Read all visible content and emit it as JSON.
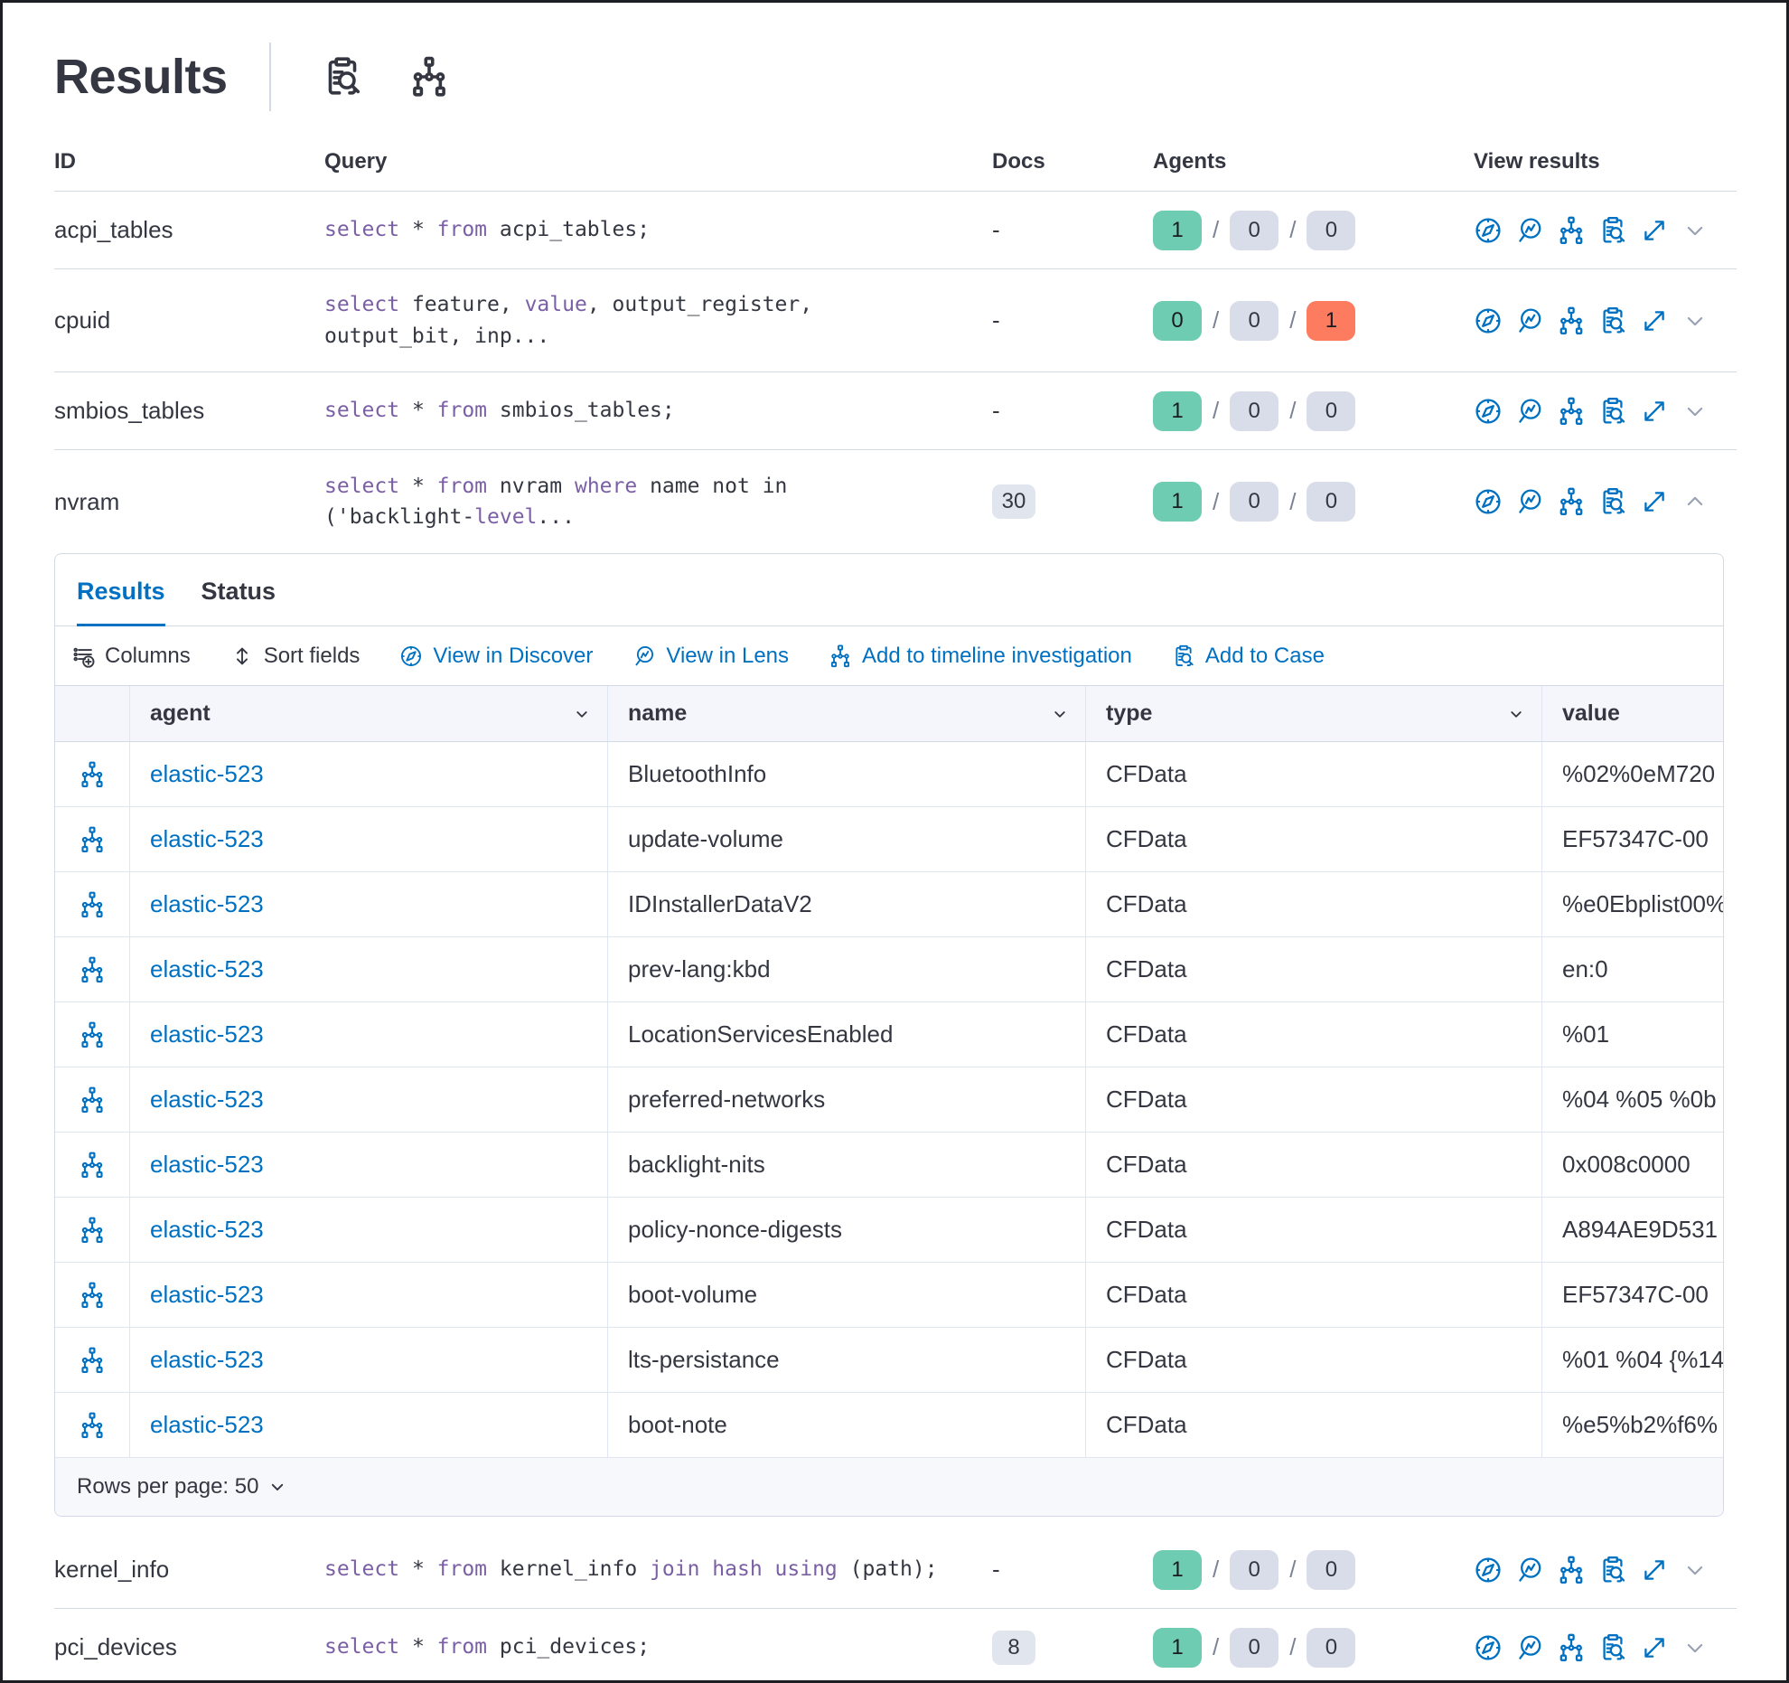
{
  "header": {
    "title": "Results"
  },
  "table": {
    "columns": {
      "id": "ID",
      "query": "Query",
      "docs": "Docs",
      "agents": "Agents",
      "view": "View results"
    }
  },
  "rows": [
    {
      "id": "acpi_tables",
      "query": [
        {
          "t": "select",
          "k": 1
        },
        {
          "t": " * "
        },
        {
          "t": "from",
          "k": 1
        },
        {
          "t": " acpi_tables;"
        }
      ],
      "docs": "-",
      "docs_badge": false,
      "agents": [
        "1",
        "0",
        "0"
      ],
      "danger": false,
      "expanded": false
    },
    {
      "id": "cpuid",
      "query": [
        {
          "t": "select",
          "k": 1
        },
        {
          "t": " feature, "
        },
        {
          "t": "value",
          "k": 1
        },
        {
          "t": ", output_register,\noutput_bit, inp..."
        }
      ],
      "docs": "-",
      "docs_badge": false,
      "agents": [
        "0",
        "0",
        "1"
      ],
      "danger": true,
      "expanded": false
    },
    {
      "id": "smbios_tables",
      "query": [
        {
          "t": "select",
          "k": 1
        },
        {
          "t": " * "
        },
        {
          "t": "from",
          "k": 1
        },
        {
          "t": " smbios_tables;"
        }
      ],
      "docs": "-",
      "docs_badge": false,
      "agents": [
        "1",
        "0",
        "0"
      ],
      "danger": false,
      "expanded": false
    },
    {
      "id": "nvram",
      "query": [
        {
          "t": "select",
          "k": 1
        },
        {
          "t": " * "
        },
        {
          "t": "from",
          "k": 1
        },
        {
          "t": " nvram "
        },
        {
          "t": "where",
          "k": 1
        },
        {
          "t": " name not in\n('backlight-"
        },
        {
          "t": "level",
          "k": 1
        },
        {
          "t": "..."
        }
      ],
      "docs": "30",
      "docs_badge": true,
      "agents": [
        "1",
        "0",
        "0"
      ],
      "danger": false,
      "expanded": true
    },
    {
      "id": "kernel_info",
      "query": [
        {
          "t": "select",
          "k": 1
        },
        {
          "t": " * "
        },
        {
          "t": "from",
          "k": 1
        },
        {
          "t": " kernel_info "
        },
        {
          "t": "join",
          "k": 1
        },
        {
          "t": " "
        },
        {
          "t": "hash",
          "k": 1
        },
        {
          "t": " "
        },
        {
          "t": "using",
          "k": 1
        },
        {
          "t": " (path);"
        }
      ],
      "docs": "-",
      "docs_badge": false,
      "agents": [
        "1",
        "0",
        "0"
      ],
      "danger": false,
      "expanded": false
    },
    {
      "id": "pci_devices",
      "query": [
        {
          "t": "select",
          "k": 1
        },
        {
          "t": " * "
        },
        {
          "t": "from",
          "k": 1
        },
        {
          "t": " pci_devices;"
        }
      ],
      "docs": "8",
      "docs_badge": true,
      "agents": [
        "1",
        "0",
        "0"
      ],
      "danger": false,
      "expanded": false
    }
  ],
  "panel": {
    "tabs": [
      {
        "label": "Results",
        "active": true
      },
      {
        "label": "Status",
        "active": false
      }
    ],
    "toolbar": [
      {
        "label": "Columns",
        "icon": "columns-icon",
        "blue": false
      },
      {
        "label": "Sort fields",
        "icon": "sort-icon",
        "blue": false
      },
      {
        "label": "View in Discover",
        "icon": "discover-compass-icon",
        "blue": true
      },
      {
        "label": "View in Lens",
        "icon": "lens-icon",
        "blue": true
      },
      {
        "label": "Add to timeline investigation",
        "icon": "timeline-icon",
        "blue": true
      },
      {
        "label": "Add to Case",
        "icon": "case-icon",
        "blue": true
      }
    ],
    "grid": {
      "columns": [
        "agent",
        "name",
        "type",
        "value"
      ],
      "rows": [
        {
          "agent": "elastic-523",
          "name": "BluetoothInfo",
          "type": "CFData",
          "value": "%02%0eM720"
        },
        {
          "agent": "elastic-523",
          "name": "update-volume",
          "type": "CFData",
          "value": "EF57347C-00"
        },
        {
          "agent": "elastic-523",
          "name": "IDInstallerDataV2",
          "type": "CFData",
          "value": "%e0Ebplist00%"
        },
        {
          "agent": "elastic-523",
          "name": "prev-lang:kbd",
          "type": "CFData",
          "value": "en:0"
        },
        {
          "agent": "elastic-523",
          "name": "LocationServicesEnabled",
          "type": "CFData",
          "value": "%01"
        },
        {
          "agent": "elastic-523",
          "name": "preferred-networks",
          "type": "CFData",
          "value": "%04 %05 %0b"
        },
        {
          "agent": "elastic-523",
          "name": "backlight-nits",
          "type": "CFData",
          "value": "0x008c0000"
        },
        {
          "agent": "elastic-523",
          "name": "policy-nonce-digests",
          "type": "CFData",
          "value": "A894AE9D531"
        },
        {
          "agent": "elastic-523",
          "name": "boot-volume",
          "type": "CFData",
          "value": "EF57347C-00"
        },
        {
          "agent": "elastic-523",
          "name": "lts-persistance",
          "type": "CFData",
          "value": "%01 %04 {%14"
        },
        {
          "agent": "elastic-523",
          "name": "boot-note",
          "type": "CFData",
          "value": "%e5%b2%f6%"
        }
      ]
    },
    "footer": {
      "rows_per_page": "Rows per page: 50"
    }
  },
  "colors": {
    "accent_blue": "#0071C2",
    "success_badge": "#6DCCB1",
    "danger_badge": "#FD7B5E",
    "neutral_badge": "#D9DDE9",
    "keyword_purple": "#7B5FA5"
  }
}
